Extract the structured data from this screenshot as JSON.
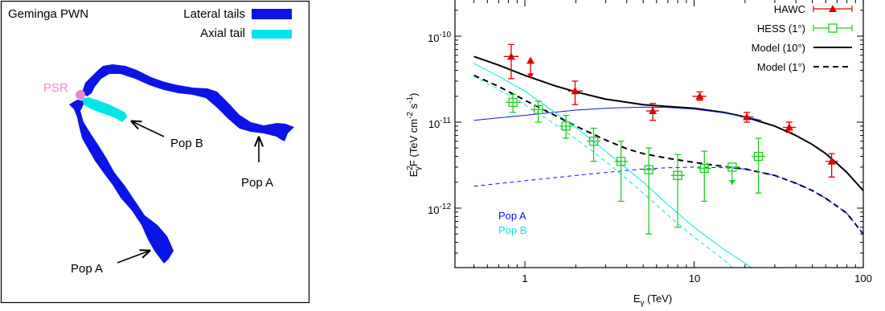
{
  "colors": {
    "pop_a": "#0a14e6",
    "pop_b": "#00e6e6",
    "psr": "#ee88cc",
    "hawc": "#dd0000",
    "hess": "#22cc22",
    "model": "#000000",
    "frame": "#000000"
  },
  "schematic": {
    "title": "Geminga PWN",
    "legend": [
      {
        "label": "Lateral tails",
        "color": "#0a14e6"
      },
      {
        "label": "Axial tail",
        "color": "#00e6e6"
      }
    ],
    "labels": {
      "psr": "PSR",
      "pop_b": "Pop B",
      "pop_a_right": "Pop A",
      "pop_a_bottom": "Pop A"
    }
  },
  "chart_data": {
    "type": "scatter",
    "xlabel": "Eγ (TeV)",
    "ylabel": "Eγ²F (TeV cm⁻² s⁻¹)",
    "xlabel_parts": {
      "main": "E",
      "sub": "γ",
      "rest": " (TeV)"
    },
    "ylabel_parts": {
      "main": "E",
      "sup": "2",
      "sub": "γ",
      "mid": "F (TeV cm",
      "sup2": "-2",
      "mid2": " s",
      "sup3": "-1",
      "end": ")"
    },
    "xscale": "log",
    "yscale": "log",
    "xlim": [
      0.5,
      100
    ],
    "ylim": [
      2e-13,
      2e-10
    ],
    "x_ticks": [
      1,
      10,
      100
    ],
    "x_tick_labels": [
      "1",
      "10",
      "100"
    ],
    "y_ticks": [
      1e-12,
      1e-11,
      1e-10
    ],
    "y_tick_labels": [
      {
        "base": "10",
        "exp": "-12"
      },
      {
        "base": "10",
        "exp": "-11"
      },
      {
        "base": "10",
        "exp": "-10"
      }
    ],
    "legend_position": "top-right",
    "legend": [
      {
        "label": "HAWC",
        "style": "hawc"
      },
      {
        "label": "HESS (1°)",
        "style": "hess"
      },
      {
        "label": "Model (10°)",
        "style": "solid"
      },
      {
        "label": "Model (1°)",
        "style": "dashed"
      }
    ],
    "annotations": [
      {
        "text": "Pop A",
        "color": "#0a14e6"
      },
      {
        "text": "Pop B",
        "color": "#00e6e6"
      }
    ],
    "series": [
      {
        "name": "HAWC",
        "kind": "points",
        "color": "#dd0000",
        "points": [
          {
            "x": 0.83,
            "y": 5.8e-11,
            "ylo": 3.2e-11,
            "yhi": 8e-11,
            "xlo": 0.75,
            "xhi": 0.92
          },
          {
            "x": 1.08,
            "y": 5.2e-11,
            "upper_limit": true
          },
          {
            "x": 1.98,
            "y": 2.3e-11,
            "ylo": 1.6e-11,
            "yhi": 3e-11,
            "xlo": 1.8,
            "xhi": 2.2
          },
          {
            "x": 5.7,
            "y": 1.35e-11,
            "ylo": 1.05e-11,
            "yhi": 1.65e-11,
            "xlo": 5.2,
            "xhi": 6.2
          },
          {
            "x": 10.8,
            "y": 2e-11,
            "ylo": 1.8e-11,
            "yhi": 2.25e-11,
            "xlo": 9.8,
            "xhi": 11.8
          },
          {
            "x": 20.5,
            "y": 1.15e-11,
            "ylo": 1e-11,
            "yhi": 1.3e-11,
            "xlo": 18.8,
            "xhi": 22.5
          },
          {
            "x": 36.5,
            "y": 8.7e-12,
            "ylo": 7.6e-12,
            "yhi": 1e-11,
            "xlo": 33.5,
            "xhi": 40.0
          },
          {
            "x": 65,
            "y": 3.5e-12,
            "ylo": 2.3e-12,
            "yhi": 4.3e-12,
            "xlo": 59.5,
            "xhi": 71.0
          }
        ]
      },
      {
        "name": "HESS (1°)",
        "kind": "points",
        "color": "#22cc22",
        "points": [
          {
            "x": 0.85,
            "y": 1.7e-11,
            "ylo": 1.3e-11,
            "yhi": 2.1e-11,
            "xlo": 0.77,
            "xhi": 0.94
          },
          {
            "x": 1.2,
            "y": 1.4e-11,
            "ylo": 1e-11,
            "yhi": 1.75e-11,
            "xlo": 1.09,
            "xhi": 1.32
          },
          {
            "x": 1.75,
            "y": 9e-12,
            "ylo": 6.5e-12,
            "yhi": 1.2e-11,
            "xlo": 1.6,
            "xhi": 1.92
          },
          {
            "x": 2.55,
            "y": 6e-12,
            "ylo": 3.5e-12,
            "yhi": 8.5e-12,
            "xlo": 2.32,
            "xhi": 2.8
          },
          {
            "x": 3.7,
            "y": 3.5e-12,
            "ylo": 1.2e-12,
            "yhi": 6e-12,
            "xlo": 3.37,
            "xhi": 4.07
          },
          {
            "x": 5.4,
            "y": 2.8e-12,
            "ylo": 5e-13,
            "yhi": 5e-12,
            "xlo": 4.92,
            "xhi": 5.94
          },
          {
            "x": 8.0,
            "y": 2.4e-12,
            "ylo": 6e-13,
            "yhi": 4.2e-12,
            "xlo": 7.3,
            "xhi": 8.8
          },
          {
            "x": 11.5,
            "y": 2.9e-12,
            "ylo": 1.2e-12,
            "yhi": 4.6e-12,
            "xlo": 10.5,
            "xhi": 12.6
          },
          {
            "x": 16.8,
            "y": 3e-12,
            "upper_limit": true,
            "xlo": 15.3,
            "xhi": 18.5
          },
          {
            "x": 24.0,
            "y": 4e-12,
            "ylo": 1.5e-12,
            "yhi": 6.5e-12,
            "xlo": 21.9,
            "xhi": 26.4
          }
        ]
      },
      {
        "name": "Model (10°)",
        "kind": "line",
        "dash": false,
        "color": "#000000",
        "width": 2,
        "x": [
          0.5,
          0.7,
          1,
          1.5,
          2,
          3,
          5,
          7,
          10,
          15,
          20,
          30,
          40,
          50,
          60,
          70,
          80,
          100
        ],
        "y": [
          5.8e-11,
          4.6e-11,
          3.5e-11,
          2.65e-11,
          2.25e-11,
          1.85e-11,
          1.6e-11,
          1.52e-11,
          1.45e-11,
          1.3e-11,
          1.15e-11,
          9e-12,
          7e-12,
          5.5e-12,
          4.3e-12,
          3.3e-12,
          2.6e-12,
          1.6e-12
        ]
      },
      {
        "name": "Model (1°)",
        "kind": "line",
        "dash": true,
        "color": "#000000",
        "width": 2,
        "x": [
          0.5,
          0.7,
          1,
          1.5,
          2,
          3,
          4,
          5,
          7,
          10,
          15,
          20,
          30,
          40,
          50,
          60,
          70,
          80,
          100
        ],
        "y": [
          3.5e-11,
          2.6e-11,
          1.8e-11,
          1.2e-11,
          9e-12,
          6.2e-12,
          4.9e-12,
          4.3e-12,
          3.8e-12,
          3.4e-12,
          3.05e-12,
          2.85e-12,
          2.4e-12,
          1.95e-12,
          1.6e-12,
          1.3e-12,
          1.05e-12,
          8.7e-13,
          5e-13
        ]
      },
      {
        "name": "Pop A (10°)",
        "kind": "line",
        "dash": false,
        "color": "#0a14e6",
        "width": 1,
        "x": [
          0.5,
          1,
          2,
          3,
          5,
          7,
          10,
          15,
          20,
          25
        ],
        "y": [
          1.05e-11,
          1.2e-11,
          1.38e-11,
          1.45e-11,
          1.5e-11,
          1.48e-11,
          1.42e-11,
          1.28e-11,
          1.15e-11,
          1.05e-11
        ]
      },
      {
        "name": "Pop A (1°)",
        "kind": "line",
        "dash": true,
        "color": "#0a14e6",
        "width": 1,
        "x": [
          0.5,
          1,
          2,
          3,
          5,
          7,
          10,
          15,
          20,
          30,
          40,
          50,
          60,
          70,
          80,
          100
        ],
        "y": [
          1.8e-12,
          2.08e-12,
          2.4e-12,
          2.6e-12,
          2.85e-12,
          2.95e-12,
          3e-12,
          2.95e-12,
          2.85e-12,
          2.4e-12,
          1.95e-12,
          1.6e-12,
          1.3e-12,
          1.05e-12,
          8.7e-13,
          5e-13
        ]
      },
      {
        "name": "Pop B (10°)",
        "kind": "line",
        "dash": false,
        "color": "#00e6e6",
        "width": 1,
        "x": [
          0.5,
          0.7,
          1,
          1.5,
          2,
          3,
          5,
          7,
          10,
          15,
          20,
          26
        ],
        "y": [
          4.8e-11,
          3.4e-11,
          2.3e-11,
          1.3e-11,
          8.7e-12,
          4.6e-12,
          2e-12,
          1.1e-12,
          6e-13,
          3.3e-13,
          2.3e-13,
          1.55e-13
        ]
      },
      {
        "name": "Pop B (1°)",
        "kind": "line",
        "dash": true,
        "color": "#00e6e6",
        "width": 1,
        "x": [
          0.5,
          0.7,
          1,
          1.5,
          2,
          3,
          5,
          7,
          10,
          15,
          17
        ],
        "y": [
          3.4e-11,
          2.4e-11,
          1.6e-11,
          9.5e-12,
          6.4e-12,
          3.5e-12,
          1.5e-12,
          8.3e-13,
          4.6e-13,
          2.5e-13,
          2e-13
        ]
      }
    ]
  }
}
